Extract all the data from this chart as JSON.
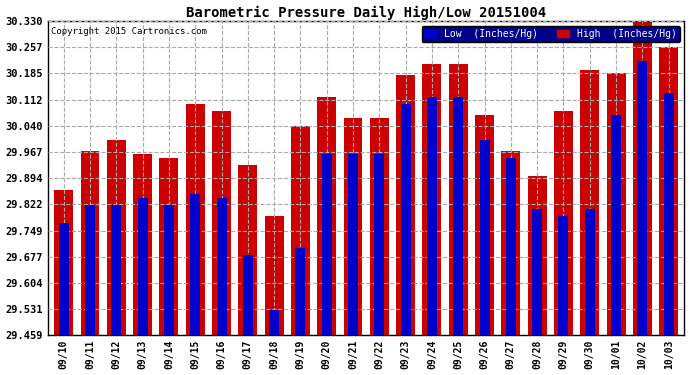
{
  "title": "Barometric Pressure Daily High/Low 20151004",
  "copyright": "Copyright 2015 Cartronics.com",
  "legend_low": "Low  (Inches/Hg)",
  "legend_high": "High  (Inches/Hg)",
  "low_color": "#0000cc",
  "high_color": "#cc0000",
  "background_color": "#ffffff",
  "plot_bg_color": "#ffffff",
  "ylim_min": 29.459,
  "ylim_max": 30.33,
  "yticks": [
    29.459,
    29.531,
    29.604,
    29.677,
    29.749,
    29.822,
    29.894,
    29.967,
    30.04,
    30.112,
    30.185,
    30.257,
    30.33
  ],
  "dates": [
    "09/10",
    "09/11",
    "09/12",
    "09/13",
    "09/14",
    "09/15",
    "09/16",
    "09/17",
    "09/18",
    "09/19",
    "09/20",
    "09/21",
    "09/22",
    "09/23",
    "09/24",
    "09/25",
    "09/26",
    "09/27",
    "09/28",
    "09/29",
    "09/30",
    "10/01",
    "10/02",
    "10/03"
  ],
  "low_values": [
    29.77,
    29.82,
    29.82,
    29.84,
    29.82,
    29.85,
    29.84,
    29.68,
    29.53,
    29.7,
    29.96,
    29.96,
    29.96,
    30.1,
    30.12,
    30.12,
    30.0,
    29.95,
    29.81,
    29.79,
    29.81,
    30.07,
    30.22,
    30.13
  ],
  "high_values": [
    29.86,
    29.97,
    30.0,
    29.96,
    29.95,
    30.1,
    30.08,
    29.93,
    29.79,
    30.04,
    30.12,
    30.06,
    30.06,
    30.18,
    30.21,
    30.21,
    30.07,
    29.97,
    29.9,
    30.08,
    30.195,
    30.185,
    30.33,
    30.257
  ]
}
